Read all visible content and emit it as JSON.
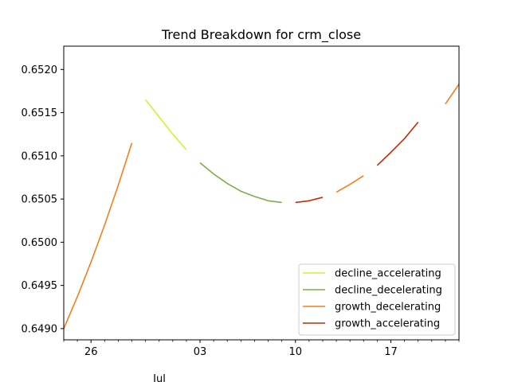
{
  "chart_data": {
    "type": "line",
    "title": "Trend Breakdown for crm_close",
    "xlabel": "",
    "ylabel": "",
    "x_major_ticks": [
      {
        "label": "26",
        "day": 26
      },
      {
        "label": "03",
        "day": 34
      },
      {
        "label": "10",
        "day": 41
      },
      {
        "label": "17",
        "day": 48
      }
    ],
    "x_month_label": "Jul",
    "x_minor_days": [
      24,
      25,
      27,
      28,
      29,
      30,
      31,
      32,
      33,
      35,
      36,
      37,
      38,
      39,
      40,
      42,
      43,
      44,
      45,
      46,
      47,
      49,
      50,
      51,
      52,
      53
    ],
    "xlim": [
      24,
      53
    ],
    "ylim": [
      0.64887,
      0.65227
    ],
    "y_ticks": [
      {
        "label": "0.6490",
        "value": 0.649
      },
      {
        "label": "0.6495",
        "value": 0.6495
      },
      {
        "label": "0.6500",
        "value": 0.65
      },
      {
        "label": "0.6505",
        "value": 0.6505
      },
      {
        "label": "0.6510",
        "value": 0.651
      },
      {
        "label": "0.6515",
        "value": 0.6515
      },
      {
        "label": "0.6520",
        "value": 0.652
      }
    ],
    "grid": false,
    "legend_position": "lower-right",
    "series": [
      {
        "name": "decline_accelerating",
        "color": "#d4f032",
        "segments": [
          [
            [
              30,
              0.65165
            ],
            [
              31,
              0.65145
            ],
            [
              32,
              0.65125
            ],
            [
              33,
              0.65107
            ]
          ]
        ]
      },
      {
        "name": "decline_decelerating",
        "color": "#7cae48",
        "segments": [
          [
            [
              34,
              0.65092
            ],
            [
              35,
              0.65079
            ],
            [
              36,
              0.65068
            ],
            [
              37,
              0.65059
            ],
            [
              38,
              0.65053
            ],
            [
              39,
              0.65048
            ],
            [
              40,
              0.65046
            ]
          ]
        ]
      },
      {
        "name": "growth_decelerating",
        "color": "#f37e1f",
        "segments": [
          [
            [
              24,
              0.649
            ],
            [
              25,
              0.64937
            ],
            [
              26,
              0.64977
            ],
            [
              27,
              0.6502
            ],
            [
              28,
              0.65066
            ],
            [
              29,
              0.65115
            ]
          ],
          [
            [
              44,
              0.65058
            ],
            [
              45,
              0.65067
            ],
            [
              46,
              0.65077
            ]
          ],
          [
            [
              52,
              0.6516
            ],
            [
              53,
              0.65183
            ]
          ]
        ]
      },
      {
        "name": "growth_accelerating",
        "color": "#c42a02",
        "segments": [
          [
            [
              41,
              0.65046
            ],
            [
              42,
              0.65048
            ],
            [
              43,
              0.65052
            ]
          ],
          [
            [
              47,
              0.65089
            ],
            [
              48,
              0.65104
            ],
            [
              49,
              0.6512
            ],
            [
              50,
              0.65139
            ]
          ]
        ]
      }
    ]
  }
}
